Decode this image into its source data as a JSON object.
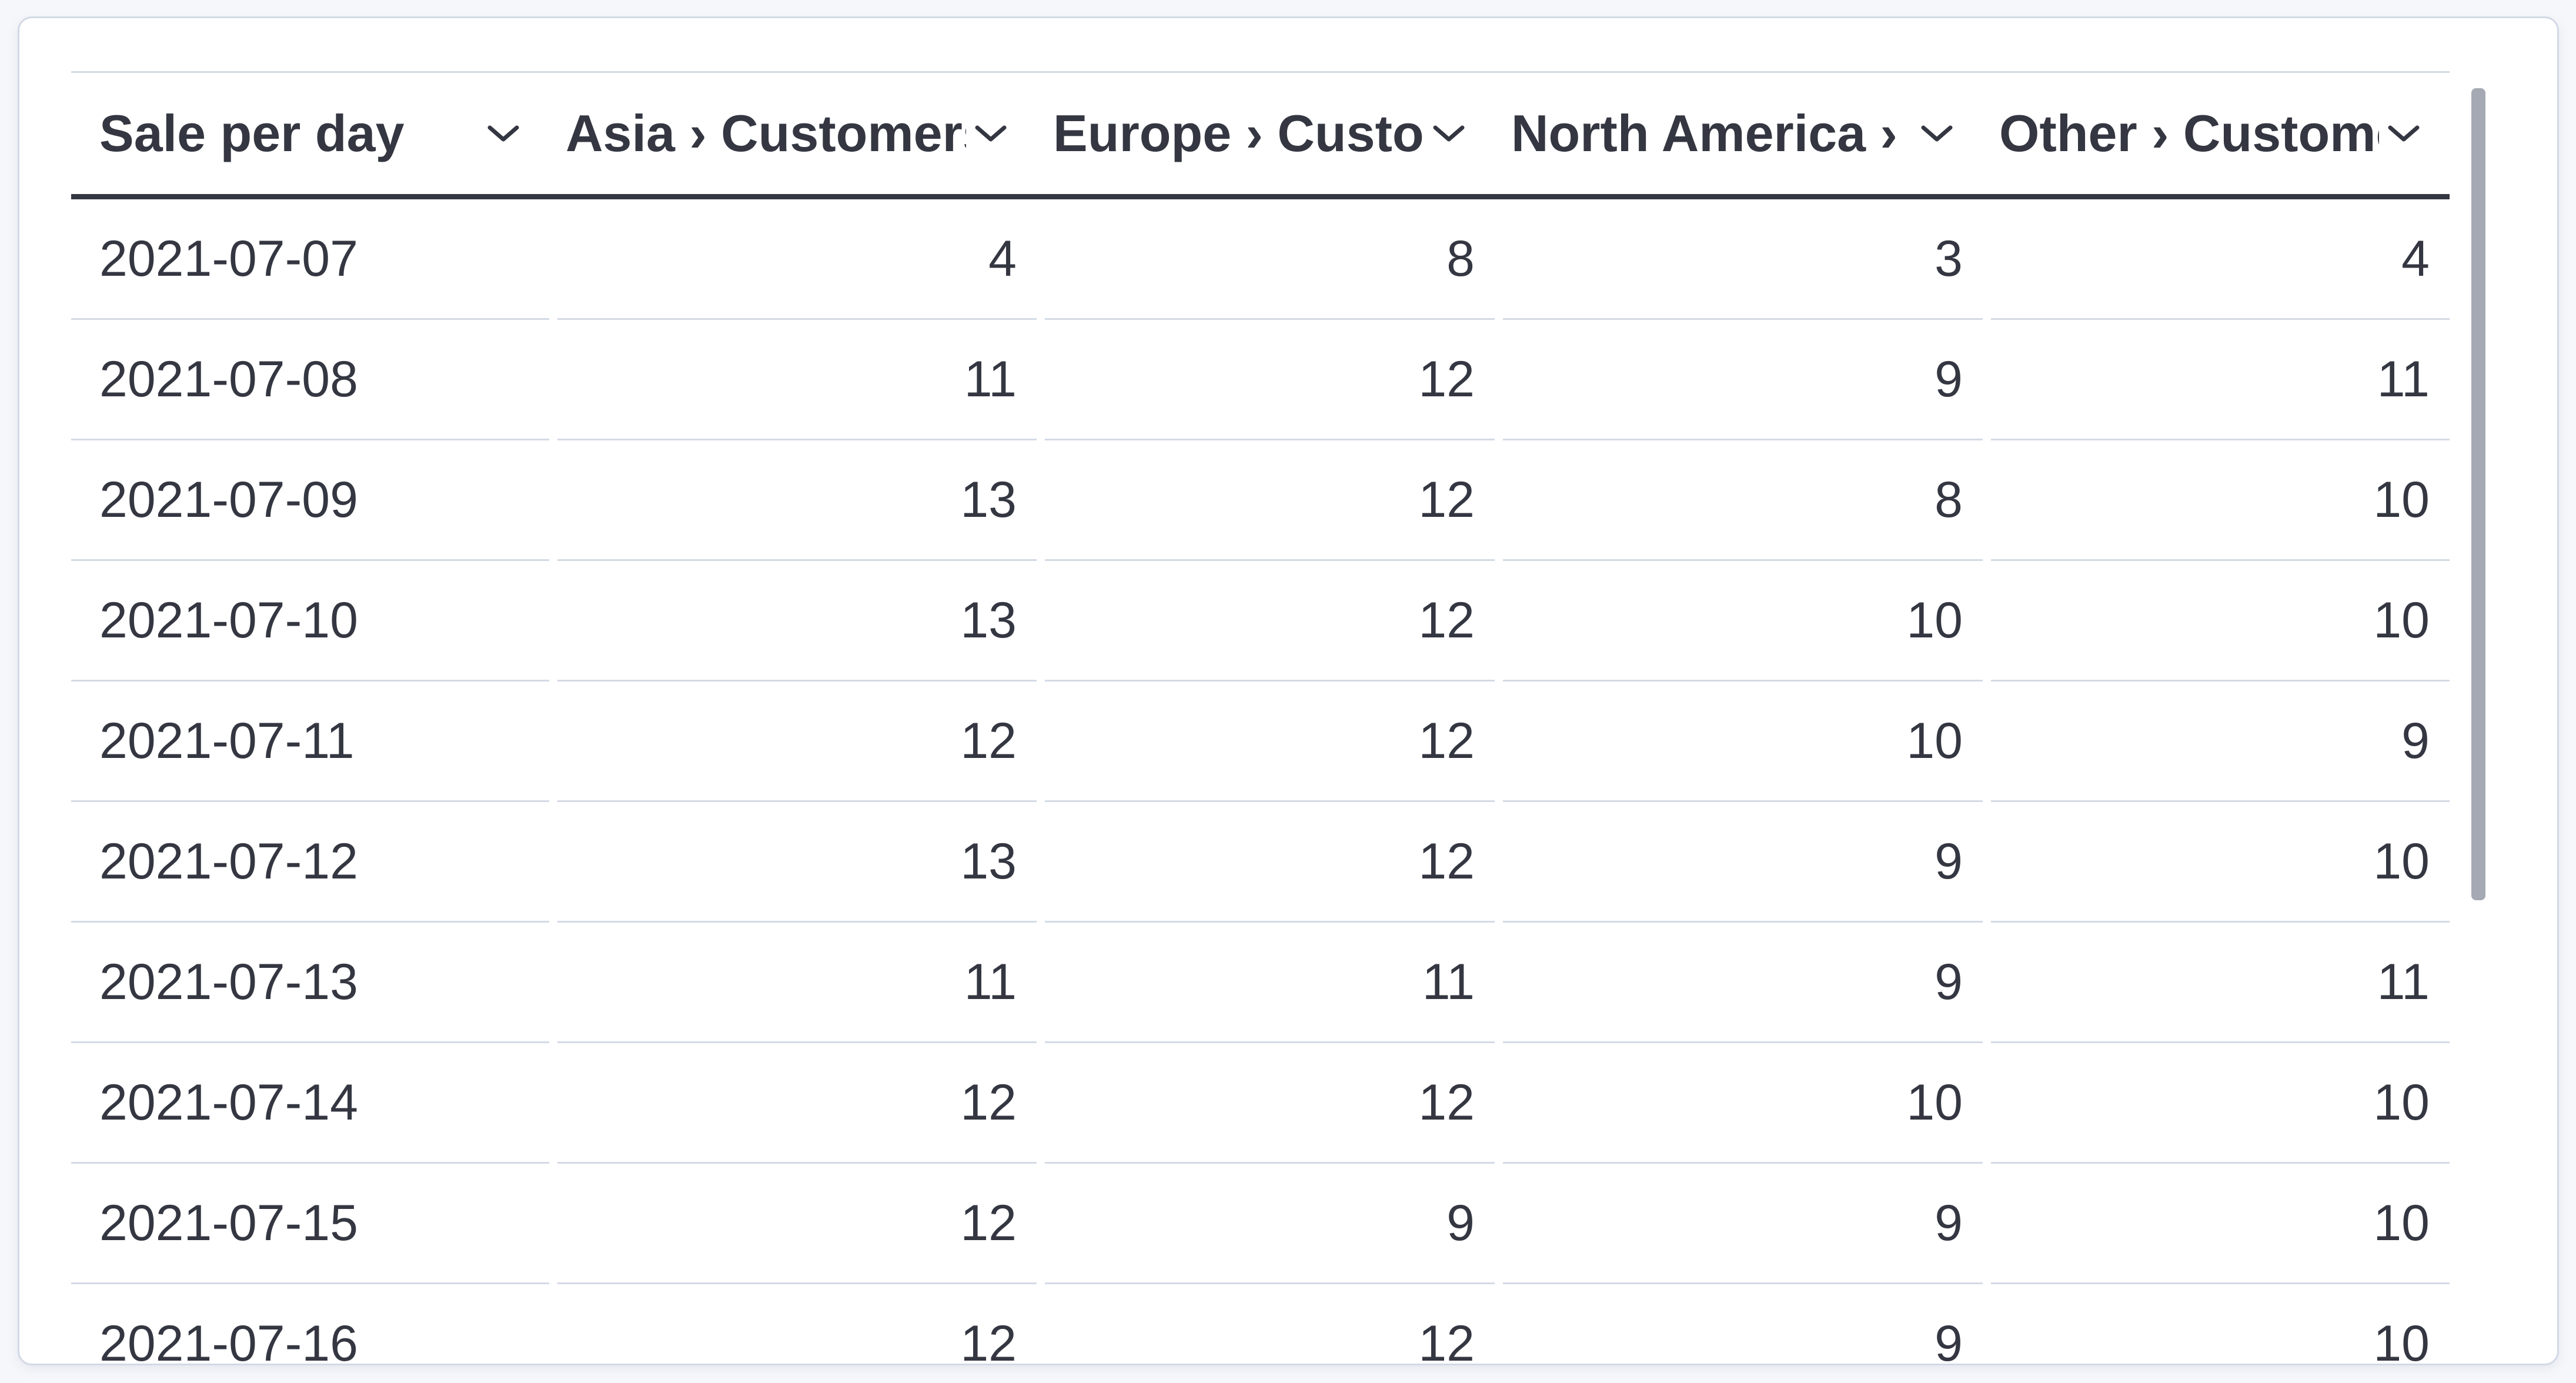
{
  "colors": {
    "page_background": "#f6f7fb",
    "card_background": "#ffffff",
    "light_border": "#d3dae6",
    "header_underline": "#343741",
    "text": "#343741",
    "scrollbar_thumb": "#a4a9b3"
  },
  "table": {
    "columns": [
      {
        "label": "Sale per day",
        "align": "left",
        "header_icon": "chevron-down"
      },
      {
        "label": "Asia › Customers",
        "align": "right",
        "header_icon": "chevron-down"
      },
      {
        "label": "Europe › Customers",
        "align": "right",
        "header_icon": "chevron-down"
      },
      {
        "label": "North America › Customers",
        "align": "right",
        "header_icon": "chevron-down"
      },
      {
        "label": "Other › Customers",
        "align": "right",
        "header_icon": "chevron-down"
      }
    ],
    "rows": [
      [
        "2021-07-07",
        "4",
        "8",
        "3",
        "4"
      ],
      [
        "2021-07-08",
        "11",
        "12",
        "9",
        "11"
      ],
      [
        "2021-07-09",
        "13",
        "12",
        "8",
        "10"
      ],
      [
        "2021-07-10",
        "13",
        "12",
        "10",
        "10"
      ],
      [
        "2021-07-11",
        "12",
        "12",
        "10",
        "9"
      ],
      [
        "2021-07-12",
        "13",
        "12",
        "9",
        "10"
      ],
      [
        "2021-07-13",
        "11",
        "11",
        "9",
        "11"
      ],
      [
        "2021-07-14",
        "12",
        "12",
        "10",
        "10"
      ],
      [
        "2021-07-15",
        "12",
        "9",
        "9",
        "10"
      ],
      [
        "2021-07-16",
        "12",
        "12",
        "9",
        "10"
      ]
    ]
  },
  "scrollbar": {
    "orientation": "vertical"
  }
}
